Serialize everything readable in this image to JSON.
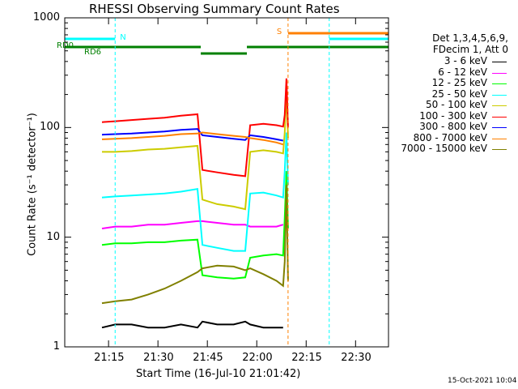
{
  "chart_data": {
    "type": "line",
    "title": "RHESSI Observing Summary Count Rates",
    "xlabel": "Start Time (16-Jul-10 21:01:42)",
    "ylabel": "Count Rate (s⁻¹ detector⁻¹)",
    "yscale": "log",
    "ylim": [
      1,
      1000
    ],
    "xlim": [
      "21:01:42",
      "22:40:00"
    ],
    "x_ticks": [
      "21:15",
      "21:30",
      "21:45",
      "22:00",
      "22:15",
      "22:30"
    ],
    "y_ticks": [
      "1",
      "10",
      "100",
      "1000"
    ],
    "legend": {
      "header": [
        "Det 1,3,4,5,6,9,",
        "FDecim 1, Att 0"
      ],
      "placement": "top-right"
    },
    "flags": [
      {
        "name": "N",
        "color": "#00ffff",
        "segments": [
          [
            "21:01:42",
            "21:17:00"
          ],
          [
            "22:22:00",
            "22:40:00"
          ]
        ],
        "markers": [
          "21:17:00",
          "22:22:00"
        ]
      },
      {
        "name": "S",
        "color": "#ff8000",
        "segments": [
          [
            "22:09:30",
            "22:40:00"
          ]
        ],
        "markers": [
          "22:09:30",
          "22:40:00"
        ]
      },
      {
        "name": "RD0",
        "color": "#008000",
        "segments": [
          [
            "21:01:42",
            "21:43:00"
          ],
          [
            "21:57:00",
            "22:40:00"
          ]
        ]
      },
      {
        "name": "RD6",
        "color": "#008000",
        "segments": [
          [
            "21:43:00",
            "21:57:00"
          ]
        ]
      }
    ],
    "x": [
      "21:13",
      "21:17",
      "21:22",
      "21:27",
      "21:32",
      "21:37",
      "21:42",
      "21:43:30",
      "21:48",
      "21:53",
      "21:56:30",
      "21:58",
      "22:02",
      "22:06",
      "22:08"
    ],
    "series": [
      {
        "name": "3 - 6 keV",
        "color": "#000000",
        "values": [
          1.5,
          1.6,
          1.6,
          1.5,
          1.5,
          1.6,
          1.5,
          1.7,
          1.6,
          1.6,
          1.7,
          1.6,
          1.5,
          1.5,
          1.5
        ]
      },
      {
        "name": "6 - 12 keV",
        "color": "#ff00ff",
        "values": [
          12,
          12.5,
          12.5,
          13,
          13,
          13.5,
          14,
          14,
          13.5,
          13,
          13,
          12.5,
          12.5,
          12.5,
          13
        ]
      },
      {
        "name": "12 - 25 keV",
        "color": "#00ff00",
        "values": [
          8.5,
          8.8,
          8.8,
          9,
          9,
          9.3,
          9.5,
          4.5,
          4.3,
          4.2,
          4.3,
          6.5,
          6.8,
          7,
          6.8
        ]
      },
      {
        "name": "25 - 50 keV",
        "color": "#00ffff",
        "values": [
          23,
          23.5,
          24,
          24.5,
          25,
          26,
          27.5,
          8.5,
          8,
          7.5,
          7.5,
          25,
          25.5,
          24,
          23
        ]
      },
      {
        "name": "50 - 100 keV",
        "color": "#cccc00",
        "values": [
          60,
          60,
          61,
          63,
          64,
          66,
          68,
          22,
          20,
          19,
          18,
          60,
          62,
          60,
          58
        ]
      },
      {
        "name": "100 - 300 keV",
        "color": "#ff0000",
        "values": [
          112,
          114,
          117,
          120,
          123,
          128,
          132,
          41,
          39,
          37,
          36,
          105,
          108,
          105,
          102
        ]
      },
      {
        "name": "300 - 800 keV",
        "color": "#0000ff",
        "values": [
          86,
          87,
          88,
          90,
          92,
          95,
          97,
          85,
          82,
          79,
          77,
          85,
          82,
          78,
          76
        ]
      },
      {
        "name": "800 - 7000 keV",
        "color": "#ff8000",
        "values": [
          78,
          79,
          80,
          82,
          84,
          87,
          88,
          90,
          87,
          84,
          82,
          80,
          77,
          73,
          70
        ]
      },
      {
        "name": "7000 - 15000 keV",
        "color": "#808000",
        "values": [
          2.5,
          2.6,
          2.7,
          3,
          3.4,
          4,
          4.8,
          5.2,
          5.5,
          5.4,
          5,
          5.2,
          4.6,
          4,
          3.6
        ]
      }
    ],
    "spike": {
      "x": [
        "22:08:30",
        "22:09:00",
        "22:09:30"
      ],
      "series": {
        "100 - 300 keV": [
          130,
          280,
          100
        ],
        "50 - 100 keV": [
          90,
          220,
          80
        ],
        "25 - 50 keV": [
          40,
          90,
          30
        ],
        "12 - 25 keV": [
          15,
          40,
          12
        ],
        "7000 - 15000 keV": [
          6,
          30,
          4
        ]
      }
    },
    "grid": false
  },
  "footer": {
    "timestamp": "15-Oct-2021 10:04"
  }
}
